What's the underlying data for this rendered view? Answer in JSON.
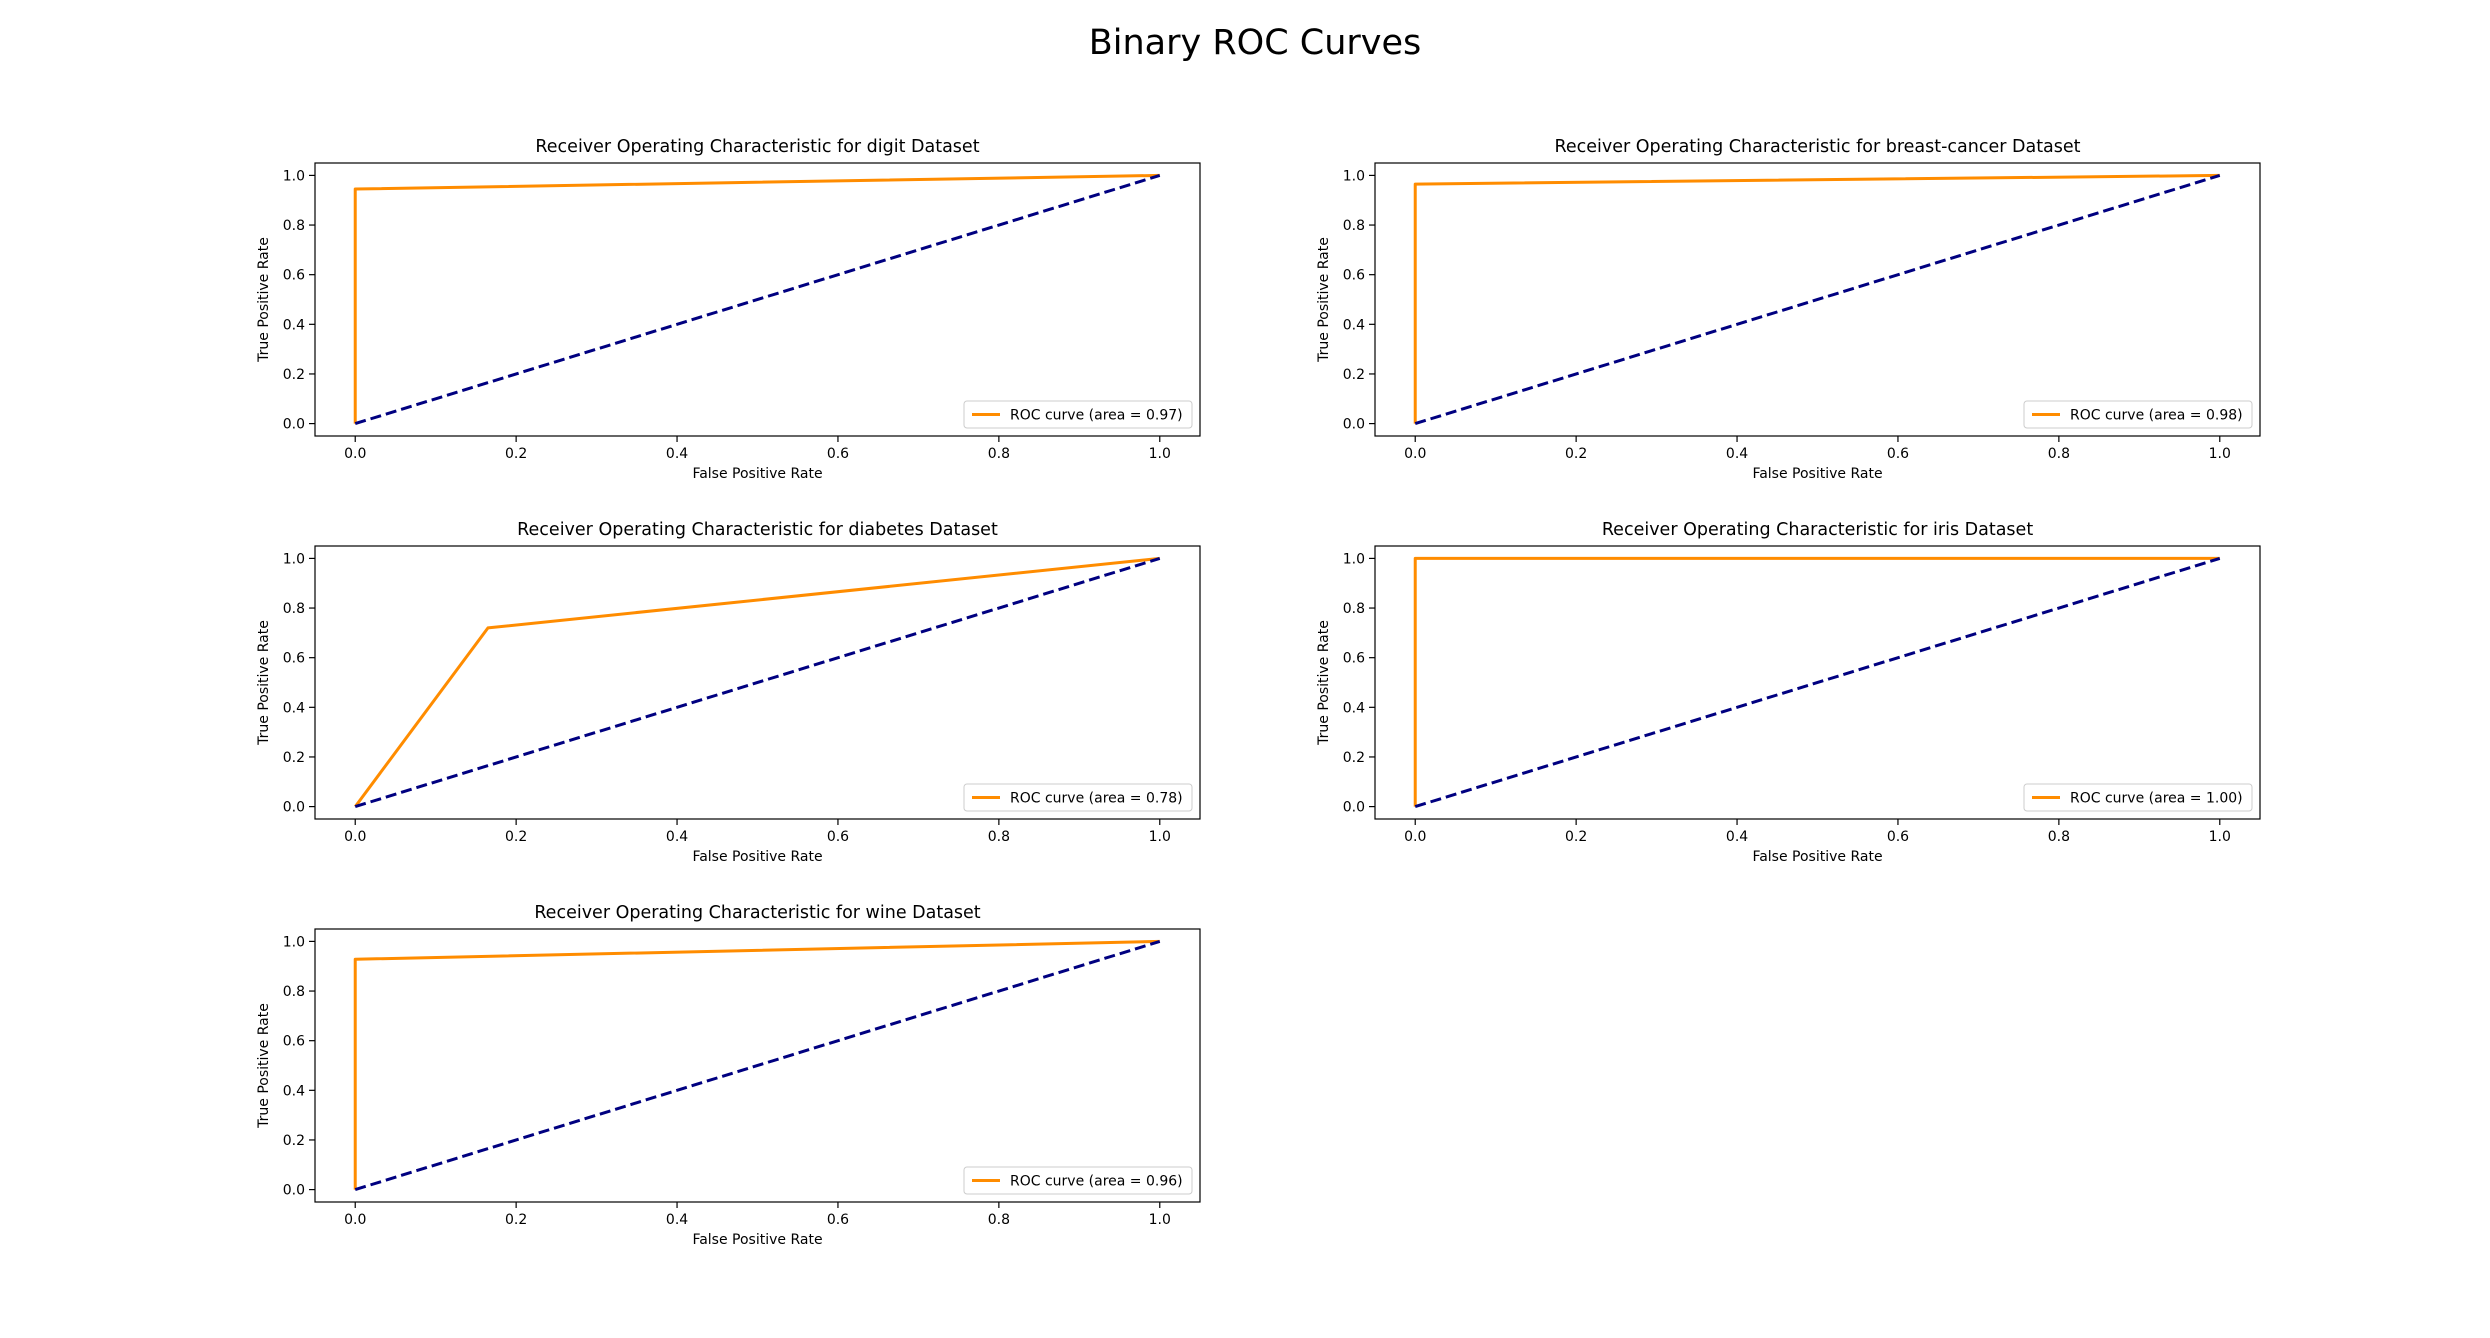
{
  "figure": {
    "title": "Binary ROC Curves"
  },
  "colors": {
    "roc_curve": "#ff8c00",
    "chance_line": "#000080",
    "axes": "#000000",
    "background": "#ffffff"
  },
  "chart_data": [
    {
      "type": "line",
      "title": "Receiver Operating Characteristic for digit Dataset",
      "xlabel": "False Positive Rate",
      "ylabel": "True Positive Rate",
      "xlim": [
        -0.05,
        1.05
      ],
      "ylim": [
        -0.05,
        1.05
      ],
      "xticks": [
        "0.0",
        "0.2",
        "0.4",
        "0.6",
        "0.8",
        "1.0"
      ],
      "yticks": [
        "0.0",
        "0.2",
        "0.4",
        "0.6",
        "0.8",
        "1.0"
      ],
      "grid": false,
      "legend_position": "lower right",
      "series": [
        {
          "name": "ROC curve (area = 0.97)",
          "style": "solid",
          "color": "#ff8c00",
          "x": [
            0.0,
            0.0,
            1.0
          ],
          "y": [
            0.0,
            0.945,
            1.0
          ]
        },
        {
          "style": "dashed",
          "color": "#000080",
          "x": [
            0.0,
            1.0
          ],
          "y": [
            0.0,
            1.0
          ]
        }
      ]
    },
    {
      "type": "line",
      "title": "Receiver Operating Characteristic for breast-cancer Dataset",
      "xlabel": "False Positive Rate",
      "ylabel": "True Positive Rate",
      "xlim": [
        -0.05,
        1.05
      ],
      "ylim": [
        -0.05,
        1.05
      ],
      "xticks": [
        "0.0",
        "0.2",
        "0.4",
        "0.6",
        "0.8",
        "1.0"
      ],
      "yticks": [
        "0.0",
        "0.2",
        "0.4",
        "0.6",
        "0.8",
        "1.0"
      ],
      "grid": false,
      "legend_position": "lower right",
      "series": [
        {
          "name": "ROC curve (area = 0.98)",
          "style": "solid",
          "color": "#ff8c00",
          "x": [
            0.0,
            0.0,
            1.0
          ],
          "y": [
            0.0,
            0.965,
            1.0
          ]
        },
        {
          "style": "dashed",
          "color": "#000080",
          "x": [
            0.0,
            1.0
          ],
          "y": [
            0.0,
            1.0
          ]
        }
      ]
    },
    {
      "type": "line",
      "title": "Receiver Operating Characteristic for diabetes Dataset",
      "xlabel": "False Positive Rate",
      "ylabel": "True Positive Rate",
      "xlim": [
        -0.05,
        1.05
      ],
      "ylim": [
        -0.05,
        1.05
      ],
      "xticks": [
        "0.0",
        "0.2",
        "0.4",
        "0.6",
        "0.8",
        "1.0"
      ],
      "yticks": [
        "0.0",
        "0.2",
        "0.4",
        "0.6",
        "0.8",
        "1.0"
      ],
      "grid": false,
      "legend_position": "lower right",
      "series": [
        {
          "name": "ROC curve (area = 0.78)",
          "style": "solid",
          "color": "#ff8c00",
          "x": [
            0.0,
            0.165,
            1.0
          ],
          "y": [
            0.0,
            0.72,
            1.0
          ]
        },
        {
          "style": "dashed",
          "color": "#000080",
          "x": [
            0.0,
            1.0
          ],
          "y": [
            0.0,
            1.0
          ]
        }
      ]
    },
    {
      "type": "line",
      "title": "Receiver Operating Characteristic for iris Dataset",
      "xlabel": "False Positive Rate",
      "ylabel": "True Positive Rate",
      "xlim": [
        -0.05,
        1.05
      ],
      "ylim": [
        -0.05,
        1.05
      ],
      "xticks": [
        "0.0",
        "0.2",
        "0.4",
        "0.6",
        "0.8",
        "1.0"
      ],
      "yticks": [
        "0.0",
        "0.2",
        "0.4",
        "0.6",
        "0.8",
        "1.0"
      ],
      "grid": false,
      "legend_position": "lower right",
      "series": [
        {
          "name": "ROC curve (area = 1.00)",
          "style": "solid",
          "color": "#ff8c00",
          "x": [
            0.0,
            0.0,
            1.0
          ],
          "y": [
            0.0,
            1.0,
            1.0
          ]
        },
        {
          "style": "dashed",
          "color": "#000080",
          "x": [
            0.0,
            1.0
          ],
          "y": [
            0.0,
            1.0
          ]
        }
      ]
    },
    {
      "type": "line",
      "title": "Receiver Operating Characteristic for wine Dataset",
      "xlabel": "False Positive Rate",
      "ylabel": "True Positive Rate",
      "xlim": [
        -0.05,
        1.05
      ],
      "ylim": [
        -0.05,
        1.05
      ],
      "xticks": [
        "0.0",
        "0.2",
        "0.4",
        "0.6",
        "0.8",
        "1.0"
      ],
      "yticks": [
        "0.0",
        "0.2",
        "0.4",
        "0.6",
        "0.8",
        "1.0"
      ],
      "grid": false,
      "legend_position": "lower right",
      "series": [
        {
          "name": "ROC curve (area = 0.96)",
          "style": "solid",
          "color": "#ff8c00",
          "x": [
            0.0,
            0.0,
            1.0
          ],
          "y": [
            0.0,
            0.928,
            1.0
          ]
        },
        {
          "style": "dashed",
          "color": "#000080",
          "x": [
            0.0,
            1.0
          ],
          "y": [
            0.0,
            1.0
          ]
        }
      ]
    }
  ]
}
